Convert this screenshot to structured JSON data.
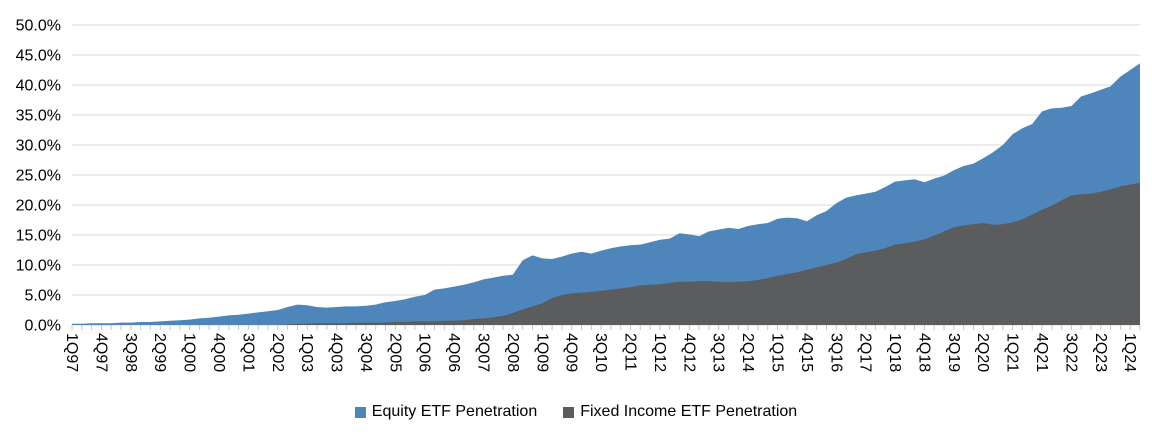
{
  "chart_data": {
    "type": "area",
    "title": "",
    "overlapping_series": true,
    "grid": true,
    "legend_position": "bottom",
    "x_label_every": 3,
    "y_axis": {
      "min": 0,
      "max": 50,
      "step": 5,
      "tick_labels": [
        "0.0%",
        "5.0%",
        "10.0%",
        "15.0%",
        "20.0%",
        "25.0%",
        "30.0%",
        "35.0%",
        "40.0%",
        "45.0%",
        "50.0%"
      ]
    },
    "categories": [
      "1Q97",
      "2Q97",
      "3Q97",
      "4Q97",
      "1Q98",
      "2Q98",
      "3Q98",
      "4Q98",
      "1Q99",
      "2Q99",
      "3Q99",
      "4Q99",
      "1Q00",
      "2Q00",
      "3Q00",
      "4Q00",
      "1Q01",
      "2Q01",
      "3Q01",
      "4Q01",
      "1Q02",
      "2Q02",
      "3Q02",
      "4Q02",
      "1Q03",
      "2Q03",
      "3Q03",
      "4Q03",
      "1Q04",
      "2Q04",
      "3Q04",
      "4Q04",
      "1Q05",
      "2Q05",
      "3Q05",
      "4Q05",
      "1Q06",
      "2Q06",
      "3Q06",
      "4Q06",
      "1Q07",
      "2Q07",
      "3Q07",
      "4Q07",
      "1Q08",
      "2Q08",
      "3Q08",
      "4Q08",
      "1Q09",
      "2Q09",
      "3Q09",
      "4Q09",
      "1Q10",
      "2Q10",
      "3Q10",
      "4Q10",
      "1Q11",
      "2Q11",
      "3Q11",
      "4Q11",
      "1Q12",
      "2Q12",
      "3Q12",
      "4Q12",
      "1Q13",
      "2Q13",
      "3Q13",
      "4Q13",
      "1Q14",
      "2Q14",
      "3Q14",
      "4Q14",
      "1Q15",
      "2Q15",
      "3Q15",
      "4Q15",
      "1Q16",
      "2Q16",
      "3Q16",
      "4Q16",
      "1Q17",
      "2Q17",
      "3Q17",
      "4Q17",
      "1Q18",
      "2Q18",
      "3Q18",
      "4Q18",
      "1Q19",
      "2Q19",
      "3Q19",
      "4Q19",
      "1Q20",
      "2Q20",
      "3Q20",
      "4Q20",
      "1Q21",
      "2Q21",
      "3Q21",
      "4Q21",
      "1Q22",
      "2Q22",
      "3Q22",
      "4Q22",
      "1Q23",
      "2Q23",
      "3Q23",
      "4Q23",
      "1Q24",
      "2Q24"
    ],
    "series": [
      {
        "name": "Equity ETF Penetration",
        "color": "#4E86BC",
        "values": [
          0.2,
          0.2,
          0.3,
          0.3,
          0.3,
          0.4,
          0.4,
          0.5,
          0.5,
          0.6,
          0.7,
          0.8,
          0.9,
          1.1,
          1.2,
          1.4,
          1.6,
          1.7,
          1.9,
          2.1,
          2.3,
          2.5,
          3.0,
          3.4,
          3.3,
          3.0,
          2.9,
          3.0,
          3.1,
          3.1,
          3.2,
          3.4,
          3.8,
          4.0,
          4.3,
          4.7,
          5.0,
          5.9,
          6.1,
          6.4,
          6.7,
          7.1,
          7.6,
          7.9,
          8.2,
          8.4,
          10.8,
          11.6,
          11.1,
          11.0,
          11.4,
          11.9,
          12.2,
          11.9,
          12.4,
          12.8,
          13.1,
          13.3,
          13.4,
          13.8,
          14.2,
          14.4,
          15.3,
          15.1,
          14.8,
          15.6,
          15.9,
          16.2,
          16.0,
          16.5,
          16.8,
          17.0,
          17.7,
          17.9,
          17.8,
          17.3,
          18.3,
          19.0,
          20.3,
          21.2,
          21.6,
          21.9,
          22.2,
          23.0,
          23.9,
          24.1,
          24.3,
          23.8,
          24.4,
          24.9,
          25.8,
          26.5,
          26.9,
          27.8,
          28.8,
          30.0,
          31.8,
          32.8,
          33.5,
          35.6,
          36.1,
          36.2,
          36.5,
          38.1,
          38.6,
          39.2,
          39.8,
          41.4,
          42.5,
          43.6
        ]
      },
      {
        "name": "Fixed Income ETF Penetration",
        "color": "#5A5C5E",
        "values": [
          0,
          0,
          0,
          0,
          0,
          0,
          0,
          0,
          0,
          0,
          0,
          0,
          0,
          0,
          0,
          0,
          0,
          0,
          0,
          0,
          0.0,
          0.0,
          0.1,
          0.2,
          0.2,
          0.3,
          0.3,
          0.3,
          0.3,
          0.4,
          0.4,
          0.4,
          0.4,
          0.5,
          0.5,
          0.6,
          0.6,
          0.6,
          0.7,
          0.7,
          0.8,
          1.0,
          1.1,
          1.3,
          1.5,
          2.0,
          2.6,
          3.1,
          3.6,
          4.5,
          5.0,
          5.3,
          5.4,
          5.5,
          5.7,
          5.9,
          6.1,
          6.3,
          6.6,
          6.7,
          6.8,
          7.0,
          7.2,
          7.2,
          7.3,
          7.3,
          7.2,
          7.1,
          7.2,
          7.3,
          7.5,
          7.8,
          8.2,
          8.5,
          8.8,
          9.2,
          9.6,
          10.0,
          10.4,
          11.0,
          11.8,
          12.1,
          12.4,
          12.8,
          13.4,
          13.6,
          13.9,
          14.3,
          14.9,
          15.6,
          16.3,
          16.6,
          16.8,
          17.0,
          16.7,
          16.8,
          17.1,
          17.6,
          18.4,
          19.2,
          19.9,
          20.8,
          21.6,
          21.8,
          21.9,
          22.2,
          22.6,
          23.1,
          23.4,
          23.7
        ]
      }
    ],
    "style": {
      "gridline_color": "#D9D9D9",
      "tick_color": "#C6C6C6",
      "axis_text_color": "#000000"
    }
  },
  "legend": {
    "items": [
      {
        "label": "Equity ETF Penetration",
        "color": "#4E86BC"
      },
      {
        "label": "Fixed Income ETF Penetration",
        "color": "#5A5C5E"
      }
    ]
  }
}
